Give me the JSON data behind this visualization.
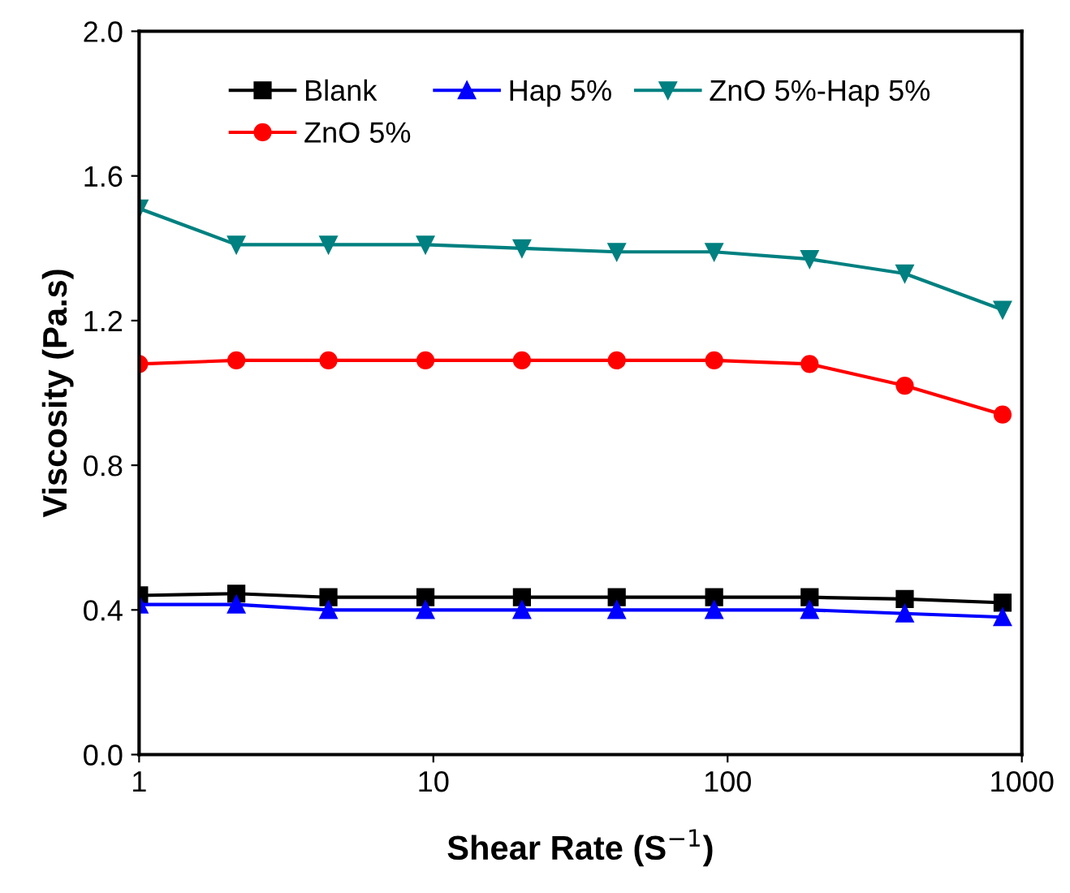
{
  "chart_data": {
    "type": "line",
    "xlabel": "Shear Rate (S$^{−1}$)",
    "ylabel": "Viscosity (Pa.s)",
    "log": "x",
    "xlim": [
      1,
      1000
    ],
    "xticks": [
      1,
      10,
      100,
      1000
    ],
    "ylim": [
      0,
      2.0
    ],
    "yticks": [
      {
        "value": 0,
        "label": "0.0"
      },
      0.4,
      0.8,
      1.2,
      1.6,
      {
        "value": 2,
        "label": "2.0"
      }
    ],
    "grid": false,
    "legend": "top",
    "line_style": "solid",
    "x": [
      1,
      2.14,
      4.4,
      9.4,
      20,
      42,
      90,
      190,
      400,
      860
    ],
    "series": [
      {
        "name": "Blank",
        "color": "#000000",
        "marker": "square",
        "values": [
          0.44,
          0.445,
          0.435,
          0.435,
          0.435,
          0.435,
          0.435,
          0.435,
          0.43,
          0.42
        ]
      },
      {
        "name": "ZnO 5%",
        "color": "#ff0000",
        "marker": "circle",
        "values": [
          1.08,
          1.09,
          1.09,
          1.09,
          1.09,
          1.09,
          1.09,
          1.08,
          1.02,
          0.94
        ]
      },
      {
        "name": "Hap 5%",
        "color": "#0000ff",
        "marker": "triangle",
        "values": [
          0.415,
          0.415,
          0.4,
          0.4,
          0.4,
          0.4,
          0.4,
          0.4,
          0.39,
          0.38
        ]
      },
      {
        "name": "ZnO 5%-Hap 5%",
        "color": "#008080",
        "marker": "triangle_down",
        "values": [
          1.51,
          1.41,
          1.41,
          1.41,
          1.4,
          1.39,
          1.39,
          1.37,
          1.33,
          1.23
        ]
      }
    ]
  }
}
